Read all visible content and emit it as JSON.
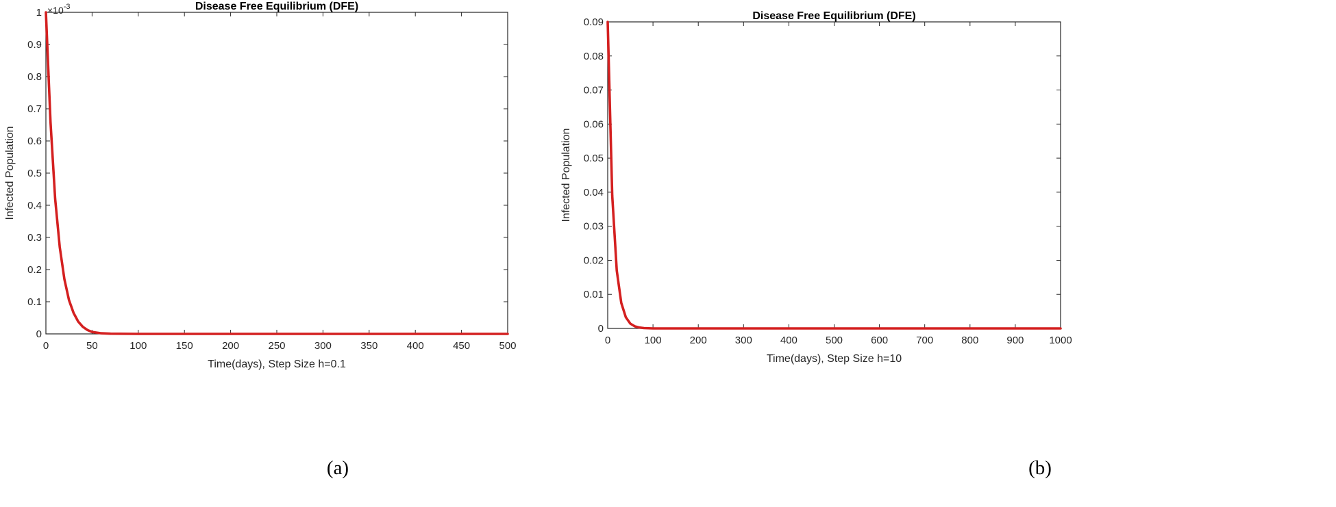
{
  "chart_data": [
    {
      "type": "line",
      "title": "Disease Free Equilibrium (DFE)",
      "xlabel": "Time(days), Step Size h=0.1",
      "ylabel": "Infected Population",
      "exponent_label": "×10",
      "exponent_value": "-3",
      "xlim": [
        0,
        500
      ],
      "ylim": [
        0,
        1
      ],
      "xticks": [
        0,
        50,
        100,
        150,
        200,
        250,
        300,
        350,
        400,
        450,
        500
      ],
      "xtick_labels": [
        "0",
        "50",
        "100",
        "150",
        "200",
        "250",
        "300",
        "350",
        "400",
        "450",
        "500"
      ],
      "yticks": [
        0,
        0.1,
        0.2,
        0.3,
        0.4,
        0.5,
        0.6,
        0.7,
        0.8,
        0.9,
        1
      ],
      "ytick_labels": [
        "0",
        "0.1",
        "0.2",
        "0.3",
        "0.4",
        "0.5",
        "0.6",
        "0.7",
        "0.8",
        "0.9",
        "1"
      ],
      "grid": false,
      "series": [
        {
          "color": "#d42020",
          "x": [
            0,
            5,
            10,
            15,
            20,
            25,
            30,
            35,
            40,
            45,
            50,
            60,
            70,
            100,
            200,
            300,
            400,
            500
          ],
          "y": [
            1.0,
            0.66,
            0.42,
            0.27,
            0.17,
            0.105,
            0.065,
            0.038,
            0.022,
            0.012,
            0.006,
            0.002,
            0.0006,
            0,
            0,
            0,
            0,
            0
          ]
        }
      ],
      "caption": "(a)"
    },
    {
      "type": "line",
      "title": "Disease Free Equilibrium (DFE)",
      "xlabel": "Time(days), Step Size h=10",
      "ylabel": "Infected Population",
      "xlim": [
        0,
        1000
      ],
      "ylim": [
        0,
        0.09
      ],
      "xticks": [
        0,
        100,
        200,
        300,
        400,
        500,
        600,
        700,
        800,
        900,
        1000
      ],
      "xtick_labels": [
        "0",
        "100",
        "200",
        "300",
        "400",
        "500",
        "600",
        "700",
        "800",
        "900",
        "1000"
      ],
      "yticks": [
        0,
        0.01,
        0.02,
        0.03,
        0.04,
        0.05,
        0.06,
        0.07,
        0.08,
        0.09
      ],
      "ytick_labels": [
        "0",
        "0.01",
        "0.02",
        "0.03",
        "0.04",
        "0.05",
        "0.06",
        "0.07",
        "0.08",
        "0.09"
      ],
      "grid": false,
      "series": [
        {
          "color": "#d42020",
          "x": [
            0,
            10,
            20,
            30,
            40,
            50,
            60,
            70,
            80,
            100,
            200,
            300,
            400,
            500,
            600,
            700,
            800,
            900,
            1000
          ],
          "y": [
            0.09,
            0.039,
            0.017,
            0.0075,
            0.0033,
            0.0014,
            0.0006,
            0.00026,
            0.00011,
            0,
            0,
            0,
            0,
            0,
            0,
            0,
            0,
            0,
            0
          ]
        }
      ],
      "caption": "(b)"
    }
  ]
}
